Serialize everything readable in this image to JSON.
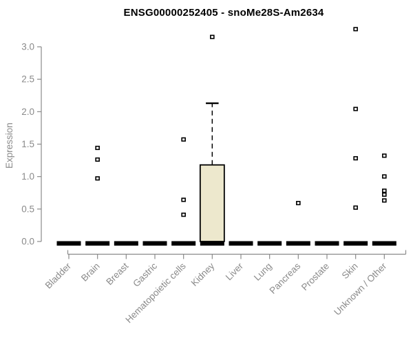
{
  "header": {
    "title": "ENSG00000252405 - snoMe28S-Am2634"
  },
  "chart_data": {
    "type": "boxplot",
    "title": "ENSG00000252405 - snoMe28S-Am2634",
    "xlabel": "",
    "ylabel": "Expression",
    "ylim": [
      0,
      3.3
    ],
    "yticks": [
      0.0,
      0.5,
      1.0,
      1.5,
      2.0,
      2.5,
      3.0
    ],
    "grid": false,
    "legend": null,
    "axis_color": "#8a8a8a",
    "box_fill_color": "#ede8cd",
    "box_border_color": "#000000",
    "outlier_marker": "open-square",
    "categories": [
      "Bladder",
      "Brain",
      "Breast",
      "Gastric",
      "Hematopoietic cells",
      "Kidney",
      "Liver",
      "Lung",
      "Pancreas",
      "Prostate",
      "Skin",
      "Unknown / Other"
    ],
    "boxes": [
      {
        "category": "Bladder",
        "median": 0,
        "q1": 0,
        "q3": 0,
        "whisker_low": 0,
        "whisker_high": 0,
        "outliers": []
      },
      {
        "category": "Brain",
        "median": 0,
        "q1": 0,
        "q3": 0,
        "whisker_low": 0,
        "whisker_high": 0,
        "outliers": [
          1.44,
          1.26,
          0.97
        ]
      },
      {
        "category": "Breast",
        "median": 0,
        "q1": 0,
        "q3": 0,
        "whisker_low": 0,
        "whisker_high": 0,
        "outliers": []
      },
      {
        "category": "Gastric",
        "median": 0,
        "q1": 0,
        "q3": 0,
        "whisker_low": 0,
        "whisker_high": 0,
        "outliers": []
      },
      {
        "category": "Hematopoietic cells",
        "median": 0,
        "q1": 0,
        "q3": 0,
        "whisker_low": 0,
        "whisker_high": 0,
        "outliers": [
          1.57,
          0.64,
          0.41
        ]
      },
      {
        "category": "Kidney",
        "median": 0,
        "q1": 0,
        "q3": 1.18,
        "whisker_low": 0,
        "whisker_high": 2.13,
        "outliers": [
          3.15
        ]
      },
      {
        "category": "Liver",
        "median": 0,
        "q1": 0,
        "q3": 0,
        "whisker_low": 0,
        "whisker_high": 0,
        "outliers": []
      },
      {
        "category": "Lung",
        "median": 0,
        "q1": 0,
        "q3": 0,
        "whisker_low": 0,
        "whisker_high": 0,
        "outliers": []
      },
      {
        "category": "Pancreas",
        "median": 0,
        "q1": 0,
        "q3": 0,
        "whisker_low": 0,
        "whisker_high": 0,
        "outliers": [
          0.59
        ]
      },
      {
        "category": "Prostate",
        "median": 0,
        "q1": 0,
        "q3": 0,
        "whisker_low": 0,
        "whisker_high": 0,
        "outliers": []
      },
      {
        "category": "Skin",
        "median": 0,
        "q1": 0,
        "q3": 0,
        "whisker_low": 0,
        "whisker_high": 0,
        "outliers": [
          3.27,
          2.04,
          1.28,
          0.52
        ]
      },
      {
        "category": "Unknown / Other",
        "median": 0,
        "q1": 0,
        "q3": 0,
        "whisker_low": 0,
        "whisker_high": 0,
        "outliers": [
          1.32,
          1.0,
          0.78,
          0.72,
          0.63
        ]
      }
    ]
  }
}
